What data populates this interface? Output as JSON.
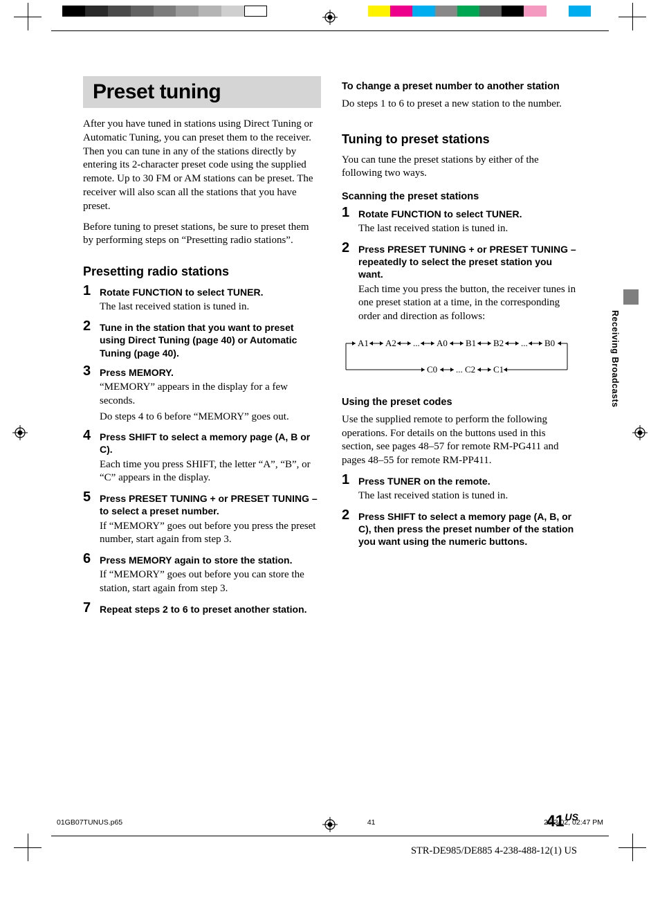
{
  "colorbars": {
    "gray": [
      "#000000",
      "#2a2a2a",
      "#4a4a4a",
      "#626262",
      "#7c7c7c",
      "#9a9a9a",
      "#b4b4b4",
      "#cfcfcf",
      "#ffffff"
    ],
    "gray_border": "#000000",
    "color": [
      "#fff200",
      "#ec008c",
      "#00aeef",
      "#888888",
      "#00a651",
      "#5b5b5b",
      "#000000",
      "#f49ac1",
      "#ffffff",
      "#00aeef"
    ]
  },
  "main_title": "Preset tuning",
  "intro": [
    "After you have tuned in stations using Direct Tuning or Automatic Tuning, you can preset them to the receiver. Then you can tune in any of the stations directly by entering its 2-character preset code using the supplied remote. Up to 30 FM or AM stations can be preset. The receiver will also scan all the stations that you have preset.",
    "Before tuning to preset stations, be sure to preset them by performing steps on “Presetting radio stations”."
  ],
  "section_presetting": "Presetting radio stations",
  "steps_presetting": [
    {
      "n": "1",
      "head": "Rotate FUNCTION to select TUNER.",
      "body": [
        "The last received station is tuned in."
      ]
    },
    {
      "n": "2",
      "head": "Tune in the station that you want to preset using Direct Tuning (page 40) or Automatic Tuning (page 40).",
      "body": []
    },
    {
      "n": "3",
      "head": "Press MEMORY.",
      "body": [
        "“MEMORY” appears in the display for a few seconds.",
        "Do steps 4 to 6 before “MEMORY” goes out."
      ]
    },
    {
      "n": "4",
      "head": "Press SHIFT to select a memory page (A, B or C).",
      "body": [
        "Each time you press SHIFT, the letter “A”, “B”, or “C” appears in the display."
      ]
    },
    {
      "n": "5",
      "head": "Press PRESET TUNING + or PRESET TUNING – to select a preset number.",
      "body": [
        "If “MEMORY” goes out before you press the preset number, start again from step 3."
      ]
    },
    {
      "n": "6",
      "head": "Press MEMORY again to store the station.",
      "body": [
        "If “MEMORY” goes out before you can store the station, start again from step 3."
      ]
    },
    {
      "n": "7",
      "head": "Repeat steps 2 to 6 to preset another station.",
      "body": []
    }
  ],
  "sub_change_head": "To change a preset number to another station",
  "sub_change_body": "Do steps 1 to 6 to preset a new station to the number.",
  "section_tuning": "Tuning to preset stations",
  "tuning_intro": "You can tune the preset stations by either of the following two ways.",
  "sub_scanning": "Scanning the preset stations",
  "steps_scanning": [
    {
      "n": "1",
      "head": "Rotate FUNCTION to select TUNER.",
      "body": [
        "The last received station is tuned in."
      ]
    },
    {
      "n": "2",
      "head": "Press PRESET TUNING + or PRESET TUNING – repeatedly to select the preset station you want.",
      "body": [
        "Each time you press the button, the receiver tunes in one preset station at a time, in the corresponding order and direction as follows:"
      ]
    }
  ],
  "flow": {
    "row1": [
      "A1",
      "A2",
      "...",
      "A0",
      "B1",
      "B2",
      "...",
      "B0"
    ],
    "row2": [
      "C0",
      "...",
      "C2",
      "C1"
    ]
  },
  "sub_codes": "Using the preset codes",
  "codes_intro": "Use the supplied remote to perform the following operations. For details on the buttons used in this section, see pages 48–57 for remote RM-PG411 and pages 48–55 for remote RM-PP411.",
  "steps_codes": [
    {
      "n": "1",
      "head": "Press TUNER on the remote.",
      "body": [
        "The last received station is tuned in."
      ]
    },
    {
      "n": "2",
      "head": "Press SHIFT to select a memory page (A, B, or C), then press the preset number of the station you want using the numeric buttons.",
      "body": []
    }
  ],
  "sidetab": "Receiving Broadcasts",
  "page_number": "41",
  "page_region": "US",
  "footer_doc": "STR-DE985/DE885    4-238-488-12(1) US",
  "slug": {
    "file": "01GB07TUNUS.p65",
    "page": "41",
    "datetime": "25/3/02, 02:47 PM"
  }
}
